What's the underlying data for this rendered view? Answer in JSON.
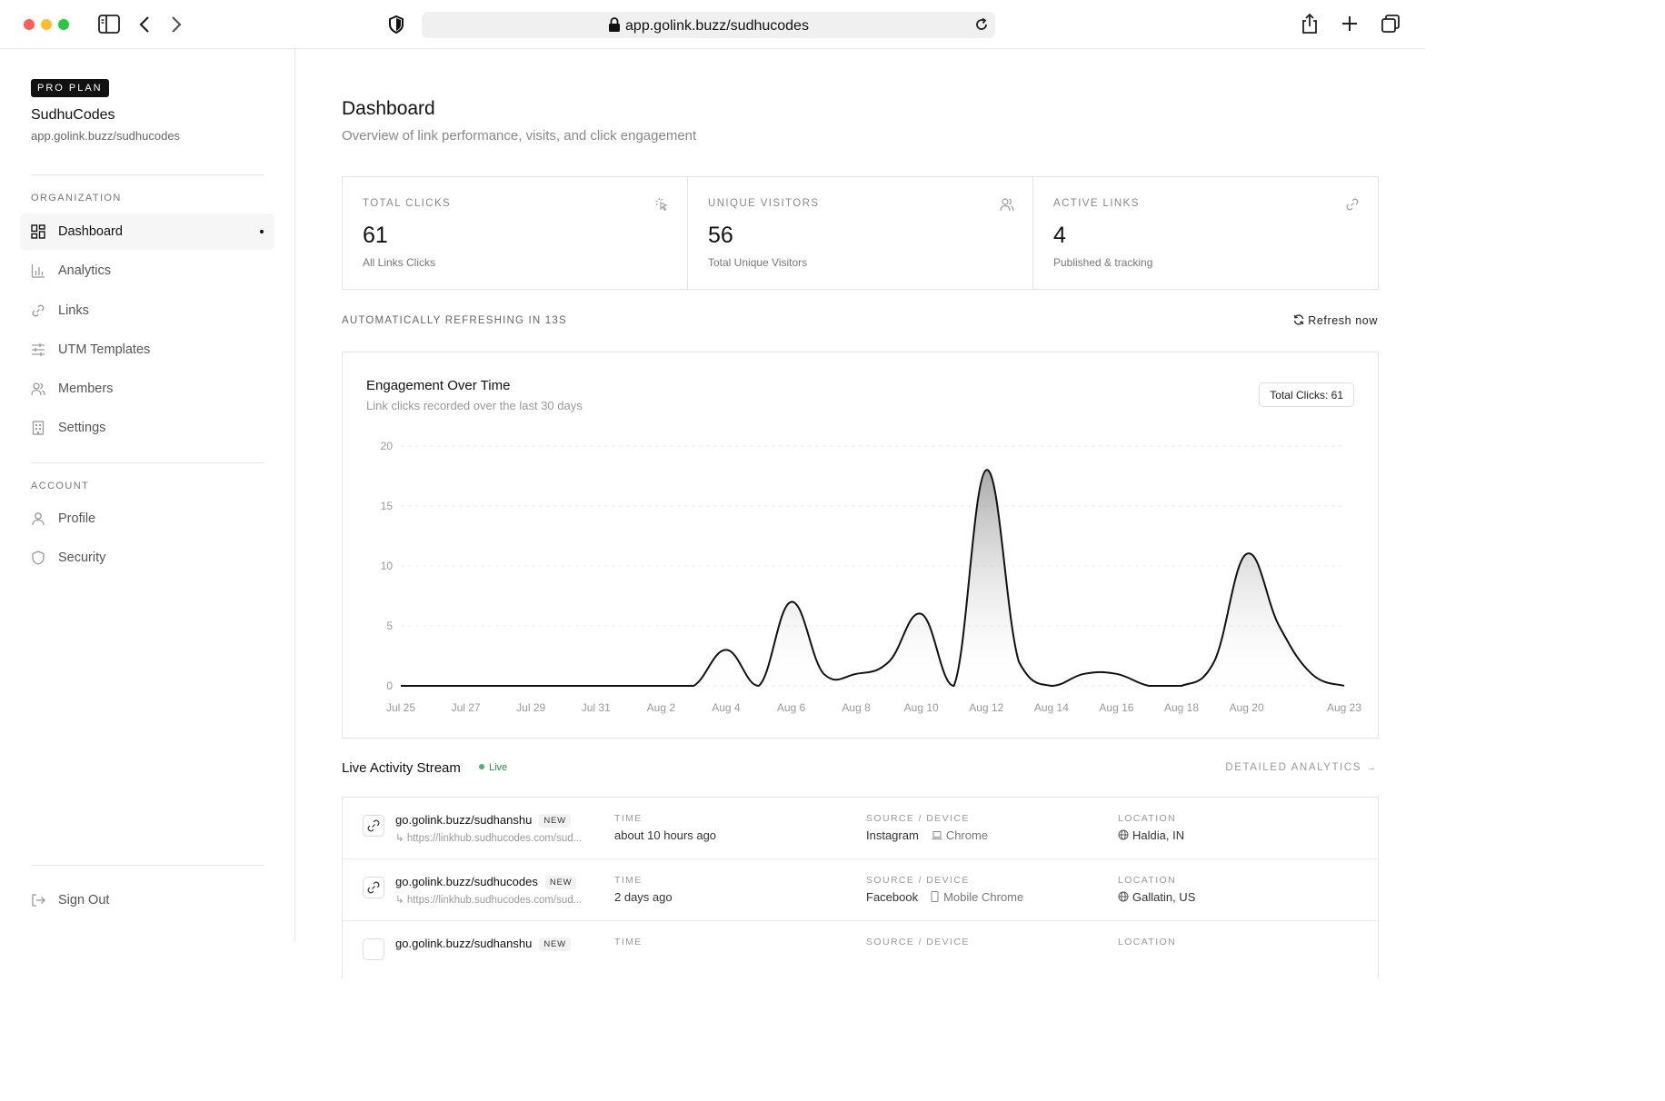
{
  "browser": {
    "url": "app.golink.buzz/sudhucodes"
  },
  "sidebar": {
    "plan_badge": "PRO PLAN",
    "org_name": "SudhuCodes",
    "org_url": "app.golink.buzz/sudhucodes",
    "section_organization": "ORGANIZATION",
    "section_account": "ACCOUNT",
    "nav": [
      {
        "label": "Dashboard",
        "icon": "grid-icon",
        "active": true
      },
      {
        "label": "Analytics",
        "icon": "bar-chart-icon",
        "active": false
      },
      {
        "label": "Links",
        "icon": "link-icon",
        "active": false
      },
      {
        "label": "UTM Templates",
        "icon": "sliders-icon",
        "active": false
      },
      {
        "label": "Members",
        "icon": "users-icon",
        "active": false
      },
      {
        "label": "Settings",
        "icon": "building-icon",
        "active": false
      }
    ],
    "account_nav": [
      {
        "label": "Profile",
        "icon": "user-icon"
      },
      {
        "label": "Security",
        "icon": "shield-icon"
      }
    ],
    "sign_out": "Sign Out"
  },
  "header": {
    "title": "Dashboard",
    "subtitle": "Overview of link performance, visits, and click engagement"
  },
  "stats": [
    {
      "label": "TOTAL CLICKS",
      "value": "61",
      "desc": "All Links Clicks",
      "icon": "pointer-click-icon"
    },
    {
      "label": "UNIQUE VISITORS",
      "value": "56",
      "desc": "Total Unique Visitors",
      "icon": "users-icon"
    },
    {
      "label": "ACTIVE LINKS",
      "value": "4",
      "desc": "Published & tracking",
      "icon": "link-icon"
    }
  ],
  "refresh": {
    "label": "AUTOMATICALLY REFRESHING IN 13S",
    "button": "Refresh now"
  },
  "chart": {
    "title": "Engagement Over Time",
    "subtitle": "Link clicks recorded over the last 30 days",
    "total_badge": "Total Clicks: 61"
  },
  "chart_data": {
    "type": "area",
    "title": "Engagement Over Time",
    "xlabel": "",
    "ylabel": "",
    "ylim": [
      0,
      20
    ],
    "yticks": [
      0,
      5,
      10,
      15,
      20
    ],
    "grid": true,
    "xtick_labels": [
      "Jul 25",
      "Jul 27",
      "Jul 29",
      "Jul 31",
      "Aug 2",
      "Aug 4",
      "Aug 6",
      "Aug 8",
      "Aug 10",
      "Aug 12",
      "Aug 14",
      "Aug 16",
      "Aug 18",
      "Aug 20",
      "Aug 23"
    ],
    "x": [
      "Jul 25",
      "Jul 26",
      "Jul 27",
      "Jul 28",
      "Jul 29",
      "Jul 30",
      "Jul 31",
      "Aug 1",
      "Aug 2",
      "Aug 3",
      "Aug 4",
      "Aug 5",
      "Aug 6",
      "Aug 7",
      "Aug 8",
      "Aug 9",
      "Aug 10",
      "Aug 11",
      "Aug 12",
      "Aug 13",
      "Aug 14",
      "Aug 15",
      "Aug 16",
      "Aug 17",
      "Aug 18",
      "Aug 19",
      "Aug 20",
      "Aug 21",
      "Aug 22",
      "Aug 23"
    ],
    "values": [
      0,
      0,
      0,
      0,
      0,
      0,
      0,
      0,
      0,
      0,
      3,
      0,
      7,
      1,
      1,
      2,
      6,
      0,
      18,
      2,
      0,
      1,
      1,
      0,
      0,
      2,
      11,
      5,
      1,
      0
    ]
  },
  "activity": {
    "title": "Live Activity Stream",
    "live_label": "Live",
    "detailed_link": "DETAILED ANALYTICS →",
    "col_time": "TIME",
    "col_source": "SOURCE / DEVICE",
    "col_location": "LOCATION",
    "new_label": "NEW",
    "rows": [
      {
        "short": "go.golink.buzz/sudhanshu",
        "dest": "↳ https://linkhub.sudhucodes.com/sud...",
        "time": "about 10 hours ago",
        "source": "Instagram",
        "device": "Chrome",
        "location": "Haldia, IN"
      },
      {
        "short": "go.golink.buzz/sudhucodes",
        "dest": "↳ https://linkhub.sudhucodes.com/sud...",
        "time": "2 days ago",
        "source": "Facebook",
        "device": "Mobile Chrome",
        "location": "Gallatin, US"
      },
      {
        "short": "go.golink.buzz/sudhanshu",
        "dest": "",
        "time": "",
        "source": "",
        "device": "",
        "location": ""
      }
    ]
  }
}
